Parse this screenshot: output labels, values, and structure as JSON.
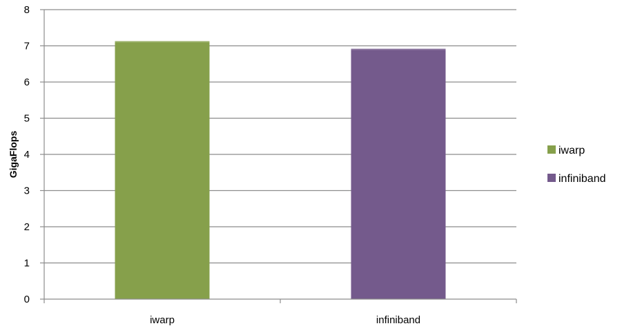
{
  "chart_data": {
    "type": "bar",
    "title": "",
    "xlabel": "",
    "ylabel": "GigaFlops",
    "ylim": [
      0,
      8
    ],
    "yticks": [
      0,
      1,
      2,
      3,
      4,
      5,
      6,
      7,
      8
    ],
    "grid": true,
    "legend_position": "right",
    "categories": [
      "iwarp",
      "infiniband"
    ],
    "values": [
      7.13,
      6.92
    ],
    "colors": [
      "#86a04b",
      "#745a8c"
    ],
    "legend": [
      {
        "label": "iwarp",
        "color": "#86a04b"
      },
      {
        "label": "infiniband",
        "color": "#745a8c"
      }
    ]
  }
}
